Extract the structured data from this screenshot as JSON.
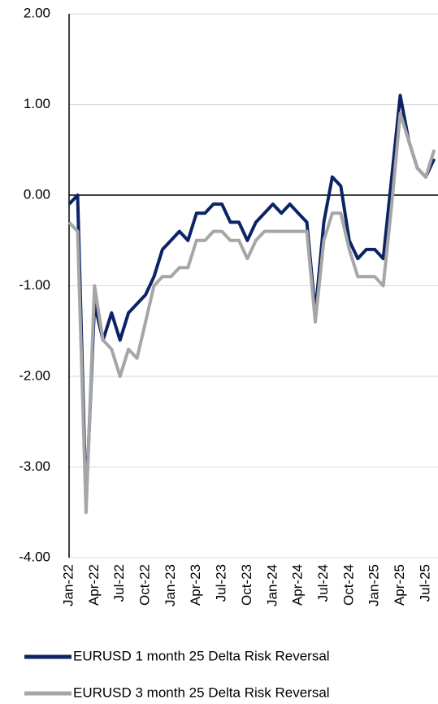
{
  "chart_data": {
    "type": "line",
    "categories": [
      "Jan-22",
      null,
      null,
      "Apr-22",
      null,
      null,
      "Jul-22",
      null,
      null,
      "Oct-22",
      null,
      null,
      "Jan-23",
      null,
      null,
      "Apr-23",
      null,
      null,
      "Jul-23",
      null,
      null,
      "Oct-23",
      null,
      null,
      "Jan-24",
      null,
      null,
      "Apr-24",
      null,
      null,
      "Jul-24",
      null,
      null,
      "Oct-24",
      null,
      null,
      "Jan-25",
      null,
      null,
      "Apr-25",
      null,
      null,
      "Jul-25",
      null
    ],
    "series": [
      {
        "name": "EURUSD 1 month 25 Delta Risk Reversal",
        "color": "#0c2466",
        "values": [
          -0.1,
          0.0,
          -3.4,
          -1.2,
          -1.6,
          -1.3,
          -1.6,
          -1.3,
          -1.2,
          -1.1,
          -0.9,
          -0.6,
          -0.5,
          -0.4,
          -0.5,
          -0.2,
          -0.2,
          -0.1,
          -0.1,
          -0.3,
          -0.3,
          -0.5,
          -0.3,
          -0.2,
          -0.1,
          -0.2,
          -0.1,
          -0.2,
          -0.3,
          -1.3,
          -0.3,
          0.2,
          0.1,
          -0.5,
          -0.7,
          -0.6,
          -0.6,
          -0.7,
          0.2,
          1.1,
          0.6,
          0.3,
          0.2,
          0.4
        ]
      },
      {
        "name": "EURUSD 3 month 25 Delta Risk Reversal",
        "color": "#a6a6a6",
        "values": [
          -0.3,
          -0.4,
          -3.5,
          -1.0,
          -1.6,
          -1.7,
          -2.0,
          -1.7,
          -1.8,
          -1.4,
          -1.0,
          -0.9,
          -0.9,
          -0.8,
          -0.8,
          -0.5,
          -0.5,
          -0.4,
          -0.4,
          -0.5,
          -0.5,
          -0.7,
          -0.5,
          -0.4,
          -0.4,
          -0.4,
          -0.4,
          -0.4,
          -0.4,
          -1.4,
          -0.5,
          -0.2,
          -0.2,
          -0.6,
          -0.9,
          -0.9,
          -0.9,
          -1.0,
          -0.1,
          0.9,
          0.6,
          0.3,
          0.2,
          0.5
        ]
      }
    ],
    "ylim": [
      -4,
      2
    ],
    "yticks": [
      {
        "value": -4,
        "label": "-4.00"
      },
      {
        "value": -3,
        "label": "-3.00"
      },
      {
        "value": -2,
        "label": "-2.00"
      },
      {
        "value": -1,
        "label": "-1.00"
      },
      {
        "value": 0,
        "label": "0.00"
      },
      {
        "value": 1,
        "label": "1.00"
      },
      {
        "value": 2,
        "label": "2.00"
      }
    ],
    "grid": true,
    "legend": "bottom"
  }
}
